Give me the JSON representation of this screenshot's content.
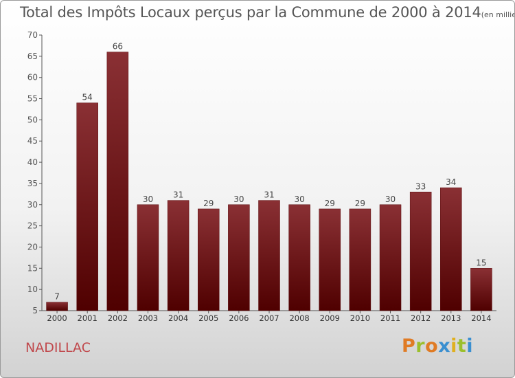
{
  "title": "Total des Impôts Locaux perçus par la Commune de 2000 à 2014",
  "unit_note": "(en milliers d'€)",
  "commune_name": "NADILLAC",
  "logo_text": "Proxiti",
  "colors": {
    "bar_top": "#8a3034",
    "bar_bottom": "#4f0000",
    "commune": "#c0484c",
    "logo": [
      "#e07b24",
      "#9bbf2c",
      "#e07b24",
      "#3a8fd0",
      "#e0b020",
      "#9bbf2c",
      "#3a8fd0"
    ]
  },
  "chart_data": {
    "type": "bar",
    "title": "Total des Impôts Locaux perçus par la Commune de 2000 à 2014",
    "subtitle": "(en milliers d'€)",
    "xlabel": "",
    "ylabel": "",
    "categories": [
      "2000",
      "2001",
      "2002",
      "2003",
      "2004",
      "2005",
      "2006",
      "2007",
      "2008",
      "2009",
      "2010",
      "2011",
      "2012",
      "2013",
      "2014"
    ],
    "values": [
      7,
      54,
      66,
      30,
      31,
      29,
      30,
      31,
      30,
      29,
      29,
      30,
      33,
      34,
      15
    ],
    "data_labels": [
      "7",
      "54",
      "66",
      "30",
      "31",
      "29",
      "30",
      "31",
      "30",
      "29",
      "29",
      "30",
      "33",
      "34",
      "15"
    ],
    "ylim": [
      5,
      70
    ],
    "yticks": [
      5,
      10,
      15,
      20,
      25,
      30,
      35,
      40,
      45,
      50,
      55,
      60,
      65,
      70
    ],
    "grid": false,
    "legend": "none"
  }
}
